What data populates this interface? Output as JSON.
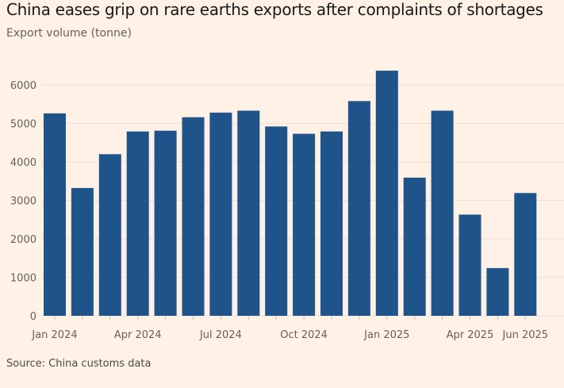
{
  "title": "China eases grip on rare earths exports after complaints of shortages",
  "subtitle": "Export volume (tonne)",
  "source": "Source: China customs data",
  "colors": {
    "bar": "#1f548b",
    "background": "#fff1e5",
    "grid": "#eee0d4"
  },
  "chart_data": {
    "type": "bar",
    "title": "China eases grip on rare earths exports after complaints of shortages",
    "ylabel": "Export volume (tonne)",
    "xlabel": "",
    "ylim": [
      0,
      6500
    ],
    "yticks": [
      0,
      1000,
      2000,
      3000,
      4000,
      5000,
      6000
    ],
    "grid": true,
    "categories": [
      "Jan 2024",
      "Feb 2024",
      "Mar 2024",
      "Apr 2024",
      "May 2024",
      "Jun 2024",
      "Jul 2024",
      "Aug 2024",
      "Sep 2024",
      "Oct 2024",
      "Nov 2024",
      "Dec 2024",
      "Jan 2025",
      "Feb 2025",
      "Mar 2025",
      "Apr 2025",
      "May 2025",
      "Jun 2025"
    ],
    "xtick_labels": {
      "0": "Jan 2024",
      "3": "Apr 2024",
      "6": "Jul 2024",
      "9": "Oct 2024",
      "12": "Jan 2025",
      "15": "Apr 2025",
      "17": "Jun 2025"
    },
    "values": [
      5260,
      3320,
      4200,
      4790,
      4810,
      5160,
      5280,
      5330,
      4920,
      4730,
      4790,
      5580,
      6370,
      3590,
      5330,
      2630,
      1240,
      3190
    ]
  }
}
